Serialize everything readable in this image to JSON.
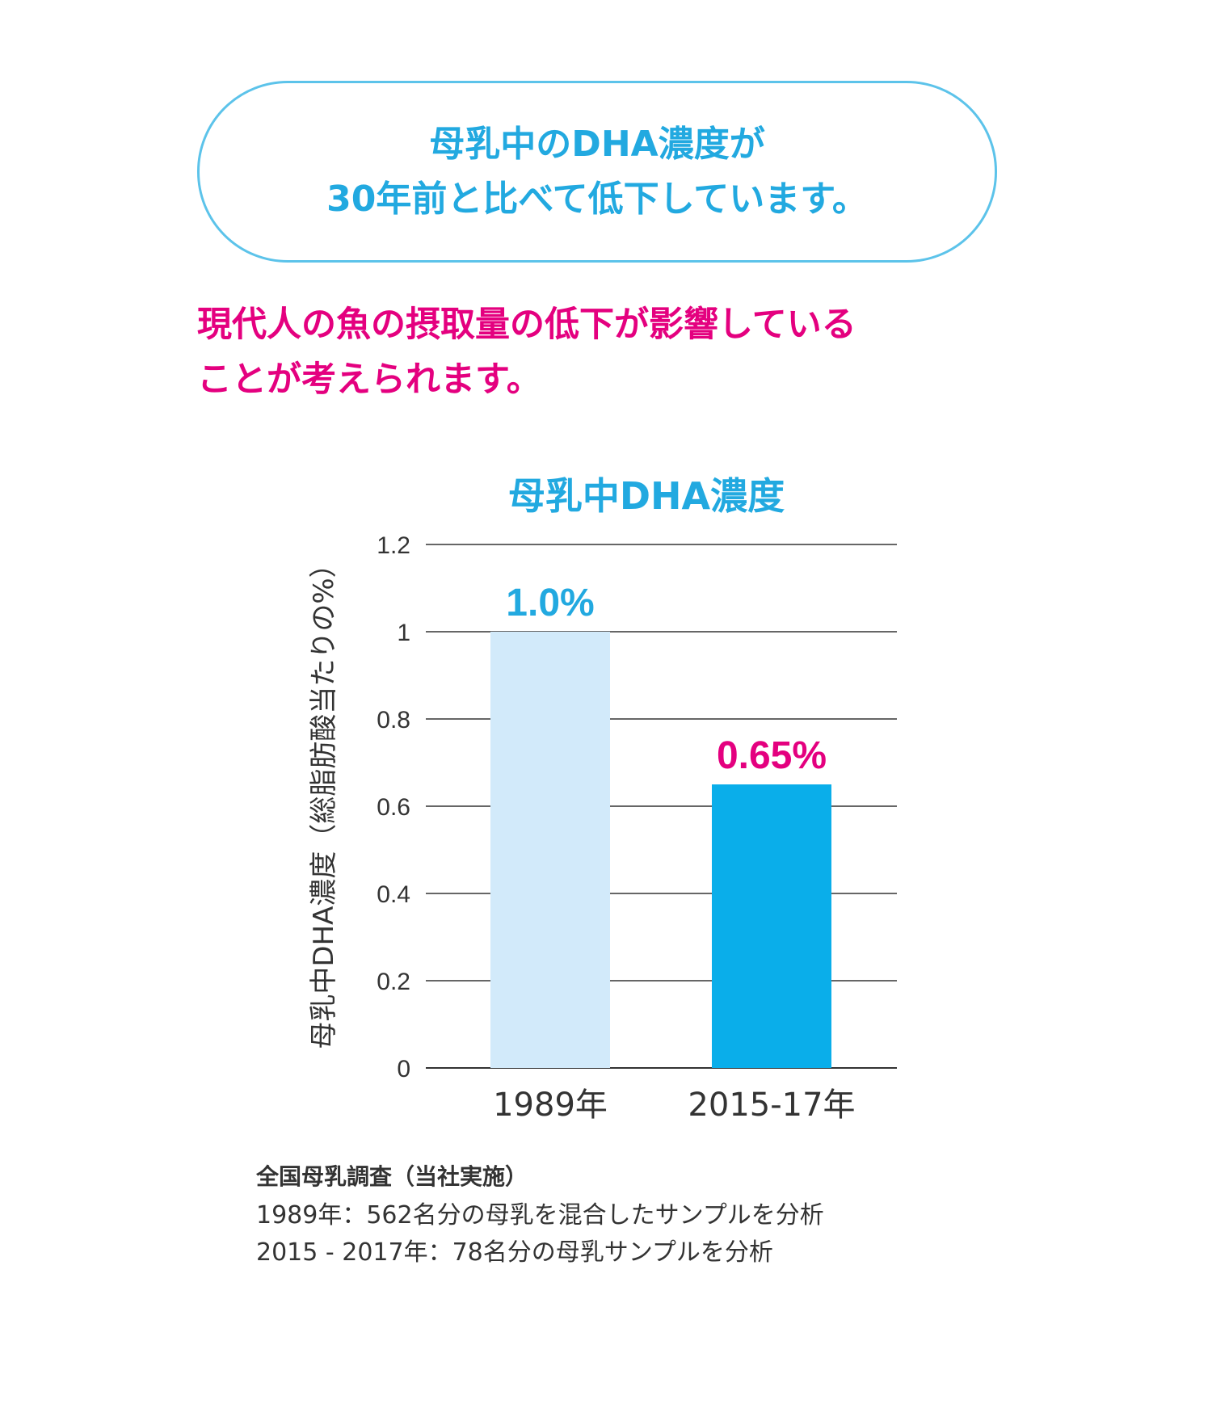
{
  "headline": {
    "line1": "母乳中のDHA濃度が",
    "line2": "30年前と比べて低下しています。",
    "border_color": "#5cc3ea",
    "text_color": "#22a9e0"
  },
  "subtext": {
    "line1": "現代人の魚の摂取量の低下が影響している",
    "line2": "ことが考えられます。",
    "color": "#e4007f"
  },
  "chart_data": {
    "type": "bar",
    "title": "母乳中DHA濃度",
    "ylabel": "母乳中DHA濃度（総脂肪酸当たりの%）",
    "xlabel": "",
    "ylim": [
      0,
      1.2
    ],
    "yticks": [
      "0",
      "0.2",
      "0.4",
      "0.6",
      "0.8",
      "1",
      "1.2"
    ],
    "ytick_values": [
      0,
      0.2,
      0.4,
      0.6,
      0.8,
      1,
      1.2
    ],
    "categories": [
      "1989年",
      "2015-17年"
    ],
    "values": [
      1.0,
      0.65
    ],
    "data_labels": [
      "1.0%",
      "0.65%"
    ],
    "bar_colors": [
      "#d2eafa",
      "#0aaeea"
    ],
    "label_colors": [
      "#22a9e0",
      "#e4007f"
    ],
    "grid": true
  },
  "source": {
    "title": "全国母乳調査（当社実施）",
    "line1": "1989年：562名分の母乳を混合したサンプルを分析",
    "line2": "2015 - 2017年：78名分の母乳サンプルを分析"
  }
}
